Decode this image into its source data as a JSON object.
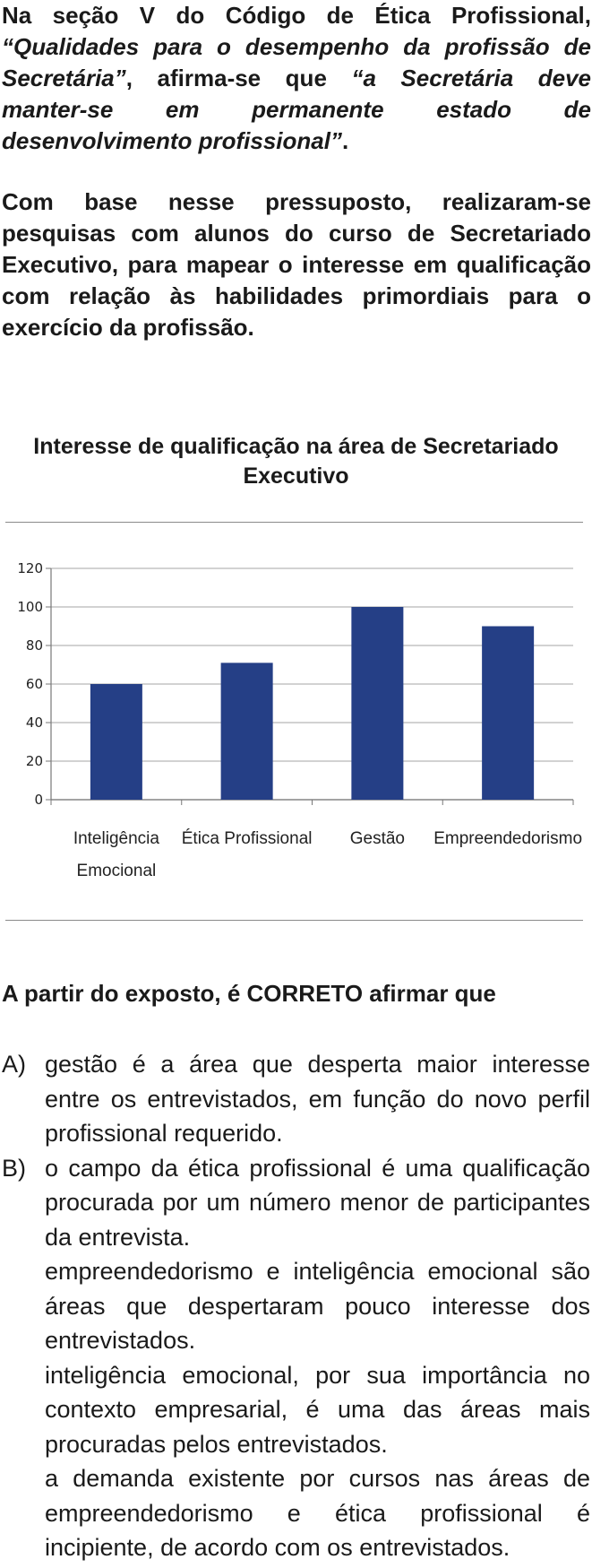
{
  "intro": {
    "p1_parts": [
      {
        "text": "Na seção V do Código de Ética Profissional, ",
        "italic": false
      },
      {
        "text": "“Qualidades para o desempenho da profissão de Secretária”",
        "italic": true
      },
      {
        "text": ", afirma-se que ",
        "italic": false
      },
      {
        "text": "“a Secretária deve manter-se em permanente estado de desenvolvimento profissional”",
        "italic": true
      },
      {
        "text": ".",
        "italic": false
      }
    ],
    "p2": "Com base nesse pressuposto, realizaram-se pesquisas com alunos do curso de Secretariado Executivo, para mapear o interesse em qualificação com relação às habilidades primordiais para o exercício da profissão."
  },
  "chart_title": "Interesse de qualificação na área de Secretariado Executivo",
  "chart_data": {
    "type": "bar",
    "title": "Interesse de qualificação na área de Secretariado Executivo",
    "categories": [
      [
        "Inteligência",
        "Emocional"
      ],
      [
        "Ética Profissional"
      ],
      [
        "Gestão"
      ],
      [
        "Empreendedorismo"
      ]
    ],
    "values": [
      60,
      71,
      100,
      90
    ],
    "ylim": [
      0,
      120
    ],
    "yticks": [
      0,
      20,
      40,
      60,
      80,
      100,
      120
    ],
    "grid": true,
    "bar_color": "#253f86",
    "xlabel": "",
    "ylabel": ""
  },
  "question": "A partir do exposto, é CORRETO afirmar que",
  "options": [
    {
      "letter": "A)",
      "text": "gestão é a área que desperta maior interesse entre os entrevistados, em função do novo perfil profissional requerido."
    },
    {
      "letter": "B)",
      "text": "o campo da ética profissional é uma qualificação procurada por um número menor de participantes da entrevista."
    },
    {
      "letter": "",
      "text": "empreendedorismo e inteligência emocional são áreas que despertaram pouco interesse dos entrevistados."
    },
    {
      "letter": "",
      "text": "inteligência emocional, por sua importância no contexto empresarial, é uma das áreas mais procuradas pelos entrevistados."
    },
    {
      "letter": "",
      "text": "a demanda existente por cursos nas áreas de empreendedorismo e ética profissional é incipiente, de acordo com os entrevistados."
    }
  ]
}
